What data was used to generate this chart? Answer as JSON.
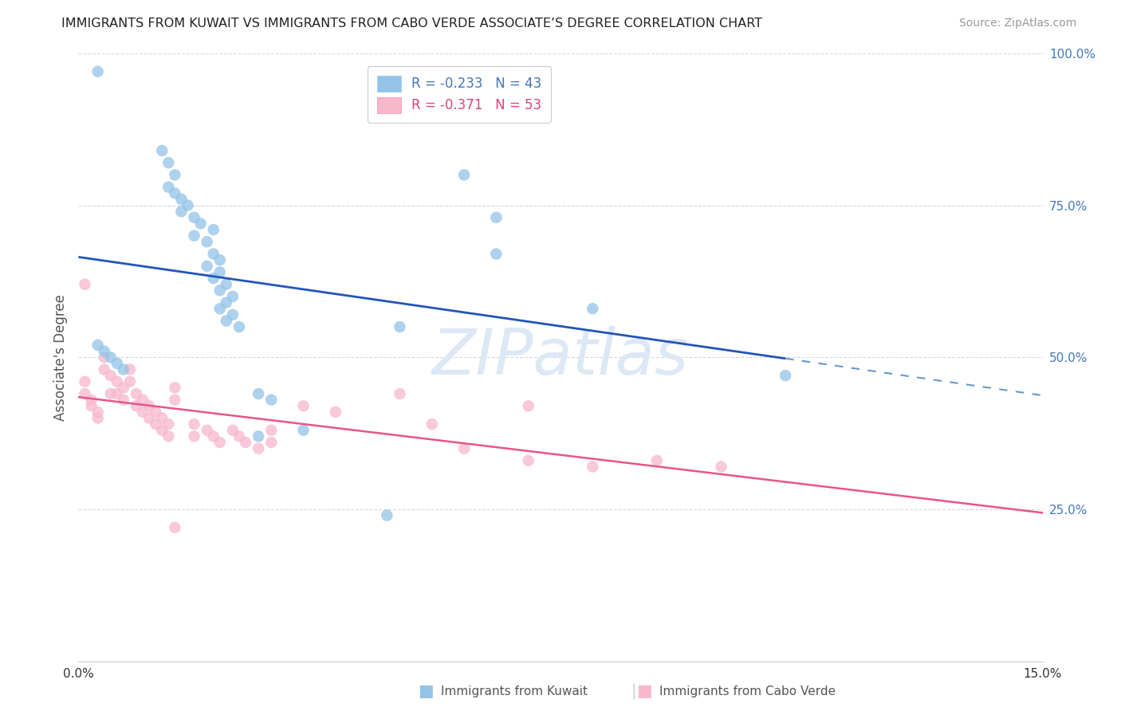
{
  "title": "IMMIGRANTS FROM KUWAIT VS IMMIGRANTS FROM CABO VERDE ASSOCIATE’S DEGREE CORRELATION CHART",
  "source_text": "Source: ZipAtlas.com",
  "ylabel": "Associate's Degree",
  "xlim": [
    0.0,
    0.15
  ],
  "ylim": [
    0.0,
    1.0
  ],
  "background_color": "#ffffff",
  "grid_color": "#d8d8d8",
  "watermark": "ZIPatlas",
  "blue_color": "#93c4e8",
  "pink_color": "#f7b8cc",
  "blue_line_color": "#2255bb",
  "pink_line_color": "#e85585",
  "blue_dash_color": "#6699cc",
  "legend_r1": "R = ",
  "legend_v1": "-0.233",
  "legend_n1": "N = ",
  "legend_nv1": "43",
  "legend_r2": "R = ",
  "legend_v2": "-0.371",
  "legend_n2": "N = ",
  "legend_nv2": "53",
  "legend_color": "#4477bb",
  "legend_v1_color": "#4477bb",
  "legend_v2_color": "#dd4477",
  "kuwait_points": [
    [
      0.003,
      0.97
    ],
    [
      0.013,
      0.84
    ],
    [
      0.014,
      0.82
    ],
    [
      0.015,
      0.8
    ],
    [
      0.014,
      0.78
    ],
    [
      0.015,
      0.77
    ],
    [
      0.016,
      0.76
    ],
    [
      0.017,
      0.75
    ],
    [
      0.016,
      0.74
    ],
    [
      0.018,
      0.73
    ],
    [
      0.019,
      0.72
    ],
    [
      0.021,
      0.71
    ],
    [
      0.018,
      0.7
    ],
    [
      0.02,
      0.69
    ],
    [
      0.021,
      0.67
    ],
    [
      0.022,
      0.66
    ],
    [
      0.02,
      0.65
    ],
    [
      0.022,
      0.64
    ],
    [
      0.021,
      0.63
    ],
    [
      0.023,
      0.62
    ],
    [
      0.022,
      0.61
    ],
    [
      0.024,
      0.6
    ],
    [
      0.023,
      0.59
    ],
    [
      0.022,
      0.58
    ],
    [
      0.024,
      0.57
    ],
    [
      0.023,
      0.56
    ],
    [
      0.003,
      0.52
    ],
    [
      0.004,
      0.51
    ],
    [
      0.005,
      0.5
    ],
    [
      0.006,
      0.49
    ],
    [
      0.007,
      0.48
    ],
    [
      0.028,
      0.44
    ],
    [
      0.03,
      0.43
    ],
    [
      0.035,
      0.38
    ],
    [
      0.028,
      0.37
    ],
    [
      0.048,
      0.24
    ],
    [
      0.06,
      0.8
    ],
    [
      0.065,
      0.73
    ],
    [
      0.065,
      0.67
    ],
    [
      0.08,
      0.58
    ],
    [
      0.11,
      0.47
    ],
    [
      0.05,
      0.55
    ],
    [
      0.025,
      0.55
    ]
  ],
  "cabo_points": [
    [
      0.001,
      0.46
    ],
    [
      0.001,
      0.44
    ],
    [
      0.002,
      0.43
    ],
    [
      0.002,
      0.42
    ],
    [
      0.003,
      0.41
    ],
    [
      0.003,
      0.4
    ],
    [
      0.004,
      0.5
    ],
    [
      0.004,
      0.48
    ],
    [
      0.005,
      0.47
    ],
    [
      0.005,
      0.44
    ],
    [
      0.006,
      0.46
    ],
    [
      0.006,
      0.44
    ],
    [
      0.007,
      0.45
    ],
    [
      0.007,
      0.43
    ],
    [
      0.008,
      0.48
    ],
    [
      0.008,
      0.46
    ],
    [
      0.009,
      0.44
    ],
    [
      0.009,
      0.42
    ],
    [
      0.01,
      0.43
    ],
    [
      0.01,
      0.41
    ],
    [
      0.011,
      0.42
    ],
    [
      0.011,
      0.4
    ],
    [
      0.012,
      0.41
    ],
    [
      0.012,
      0.39
    ],
    [
      0.013,
      0.4
    ],
    [
      0.013,
      0.38
    ],
    [
      0.014,
      0.39
    ],
    [
      0.014,
      0.37
    ],
    [
      0.015,
      0.45
    ],
    [
      0.015,
      0.43
    ],
    [
      0.018,
      0.39
    ],
    [
      0.018,
      0.37
    ],
    [
      0.02,
      0.38
    ],
    [
      0.021,
      0.37
    ],
    [
      0.022,
      0.36
    ],
    [
      0.024,
      0.38
    ],
    [
      0.025,
      0.37
    ],
    [
      0.026,
      0.36
    ],
    [
      0.028,
      0.35
    ],
    [
      0.03,
      0.38
    ],
    [
      0.03,
      0.36
    ],
    [
      0.001,
      0.62
    ],
    [
      0.035,
      0.42
    ],
    [
      0.04,
      0.41
    ],
    [
      0.05,
      0.44
    ],
    [
      0.055,
      0.39
    ],
    [
      0.06,
      0.35
    ],
    [
      0.07,
      0.42
    ],
    [
      0.07,
      0.33
    ],
    [
      0.08,
      0.32
    ],
    [
      0.09,
      0.33
    ],
    [
      0.1,
      0.32
    ],
    [
      0.015,
      0.22
    ]
  ]
}
